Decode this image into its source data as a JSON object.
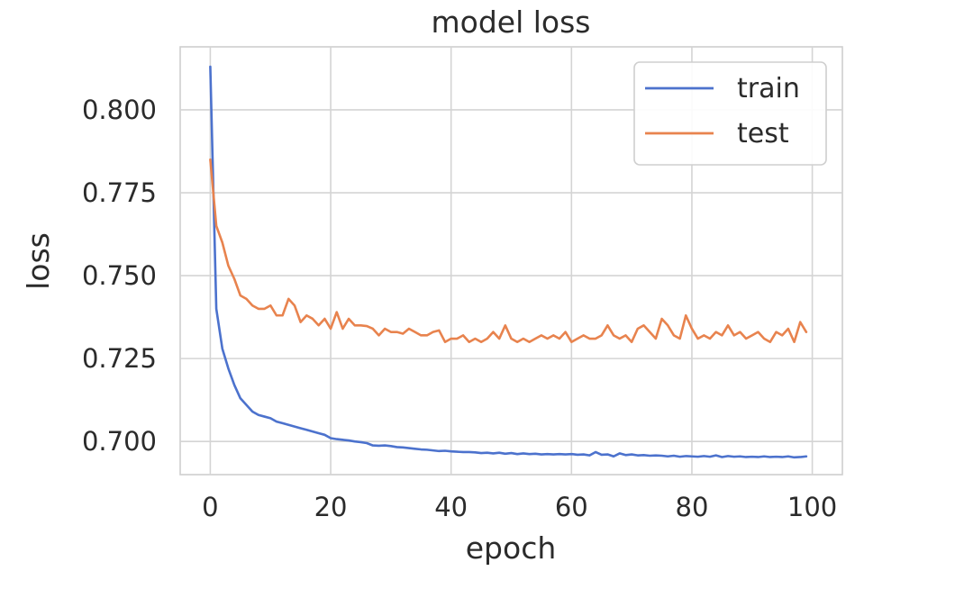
{
  "chart_data": {
    "type": "line",
    "title": "model loss",
    "xlabel": "epoch",
    "ylabel": "loss",
    "xlim": [
      -5,
      105
    ],
    "ylim": [
      0.69,
      0.819
    ],
    "xticks": [
      0,
      20,
      40,
      60,
      80,
      100
    ],
    "xtick_labels": [
      "0",
      "20",
      "40",
      "60",
      "80",
      "100"
    ],
    "yticks": [
      0.7,
      0.725,
      0.75,
      0.775,
      0.8
    ],
    "ytick_labels": [
      "0.700",
      "0.725",
      "0.750",
      "0.775",
      "0.800"
    ],
    "grid": true,
    "legend": "top-right",
    "colors": {
      "train": "#4c72cd",
      "test": "#e8834e"
    },
    "series": [
      {
        "name": "train",
        "color": "#4c72cd",
        "x": [
          0,
          1,
          2,
          3,
          4,
          5,
          6,
          7,
          8,
          9,
          10,
          11,
          12,
          13,
          14,
          15,
          16,
          17,
          18,
          19,
          20,
          21,
          22,
          23,
          24,
          25,
          26,
          27,
          28,
          29,
          30,
          31,
          32,
          33,
          34,
          35,
          36,
          37,
          38,
          39,
          40,
          41,
          42,
          43,
          44,
          45,
          46,
          47,
          48,
          49,
          50,
          51,
          52,
          53,
          54,
          55,
          56,
          57,
          58,
          59,
          60,
          61,
          62,
          63,
          64,
          65,
          66,
          67,
          68,
          69,
          70,
          71,
          72,
          73,
          74,
          75,
          76,
          77,
          78,
          79,
          80,
          81,
          82,
          83,
          84,
          85,
          86,
          87,
          88,
          89,
          90,
          91,
          92,
          93,
          94,
          95,
          96,
          97,
          98,
          99
        ],
        "values": [
          0.813,
          0.74,
          0.728,
          0.722,
          0.717,
          0.713,
          0.711,
          0.709,
          0.708,
          0.7075,
          0.707,
          0.706,
          0.7055,
          0.705,
          0.7045,
          0.704,
          0.7035,
          0.703,
          0.7025,
          0.702,
          0.701,
          0.7007,
          0.7005,
          0.7003,
          0.7,
          0.6998,
          0.6995,
          0.6988,
          0.6987,
          0.6988,
          0.6986,
          0.6983,
          0.6982,
          0.698,
          0.6978,
          0.6976,
          0.6975,
          0.6973,
          0.6971,
          0.6972,
          0.697,
          0.6969,
          0.6968,
          0.6968,
          0.6967,
          0.6965,
          0.6966,
          0.6964,
          0.6966,
          0.6963,
          0.6965,
          0.6962,
          0.6964,
          0.6962,
          0.6963,
          0.6961,
          0.6962,
          0.6961,
          0.6962,
          0.6961,
          0.6962,
          0.696,
          0.6961,
          0.6958,
          0.6968,
          0.696,
          0.6961,
          0.6955,
          0.6964,
          0.6959,
          0.6961,
          0.6958,
          0.6959,
          0.6957,
          0.6958,
          0.6957,
          0.6955,
          0.6957,
          0.6954,
          0.6956,
          0.6955,
          0.6954,
          0.6956,
          0.6954,
          0.6958,
          0.6953,
          0.6956,
          0.6954,
          0.6955,
          0.6953,
          0.6954,
          0.6953,
          0.6955,
          0.6953,
          0.6954,
          0.6953,
          0.6955,
          0.6952,
          0.6953,
          0.6955
        ]
      },
      {
        "name": "test",
        "color": "#e8834e",
        "x": [
          0,
          1,
          2,
          3,
          4,
          5,
          6,
          7,
          8,
          9,
          10,
          11,
          12,
          13,
          14,
          15,
          16,
          17,
          18,
          19,
          20,
          21,
          22,
          23,
          24,
          25,
          26,
          27,
          28,
          29,
          30,
          31,
          32,
          33,
          34,
          35,
          36,
          37,
          38,
          39,
          40,
          41,
          42,
          43,
          44,
          45,
          46,
          47,
          48,
          49,
          50,
          51,
          52,
          53,
          54,
          55,
          56,
          57,
          58,
          59,
          60,
          61,
          62,
          63,
          64,
          65,
          66,
          67,
          68,
          69,
          70,
          71,
          72,
          73,
          74,
          75,
          76,
          77,
          78,
          79,
          80,
          81,
          82,
          83,
          84,
          85,
          86,
          87,
          88,
          89,
          90,
          91,
          92,
          93,
          94,
          95,
          96,
          97,
          98,
          99
        ],
        "values": [
          0.785,
          0.765,
          0.76,
          0.753,
          0.749,
          0.744,
          0.743,
          0.741,
          0.74,
          0.74,
          0.741,
          0.738,
          0.738,
          0.743,
          0.741,
          0.736,
          0.738,
          0.737,
          0.735,
          0.737,
          0.734,
          0.739,
          0.734,
          0.737,
          0.735,
          0.735,
          0.7348,
          0.734,
          0.732,
          0.734,
          0.733,
          0.733,
          0.7325,
          0.734,
          0.733,
          0.732,
          0.732,
          0.733,
          0.7335,
          0.73,
          0.731,
          0.731,
          0.732,
          0.73,
          0.731,
          0.73,
          0.731,
          0.733,
          0.731,
          0.735,
          0.731,
          0.73,
          0.731,
          0.73,
          0.731,
          0.732,
          0.731,
          0.732,
          0.731,
          0.733,
          0.73,
          0.731,
          0.732,
          0.731,
          0.731,
          0.732,
          0.735,
          0.732,
          0.731,
          0.732,
          0.73,
          0.734,
          0.735,
          0.733,
          0.731,
          0.737,
          0.735,
          0.732,
          0.731,
          0.738,
          0.734,
          0.731,
          0.732,
          0.731,
          0.733,
          0.732,
          0.735,
          0.732,
          0.733,
          0.731,
          0.732,
          0.733,
          0.731,
          0.73,
          0.733,
          0.732,
          0.734,
          0.73,
          0.736,
          0.733
        ]
      }
    ]
  }
}
